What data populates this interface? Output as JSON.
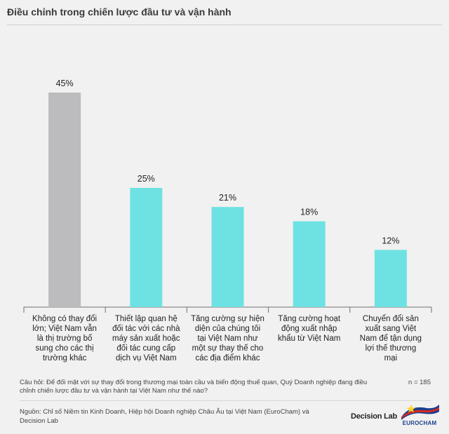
{
  "title": "Điều chỉnh trong chiến lược đầu tư và vận hành",
  "chart_data": {
    "type": "bar",
    "categories": [
      "Không có thay đổi lớn; Việt Nam vẫn là thị trường bổ sung cho các thị trường khác",
      "Thiết lập quan hệ đối tác với các nhà máy sản xuất hoặc đối tác cung cấp dịch vụ Việt Nam",
      "Tăng cường sự hiện diện của chúng tôi tại Việt Nam như một sự thay thế cho các địa điểm khác",
      "Tăng cường hoạt động xuất nhập khẩu từ Việt Nam",
      "Chuyển đổi sản xuất sang Việt Nam để tận dụng lợi thế thương mại"
    ],
    "category_lines": [
      [
        "Không có thay đổi",
        "lớn; Việt Nam vẫn",
        "là thị trường bổ",
        "sung cho các thị",
        "trường khác"
      ],
      [
        "Thiết lập quan hệ",
        "đối tác với các nhà",
        "máy sản xuất hoặc",
        "đối tác cung cấp",
        "dịch vụ Việt Nam"
      ],
      [
        "Tăng cường sự hiện",
        "diện của chúng tôi",
        "tại Việt Nam như",
        "một sự thay thế cho",
        "các địa điểm khác"
      ],
      [
        "Tăng cường hoạt",
        "động xuất nhập",
        "khẩu từ Việt Nam"
      ],
      [
        "Chuyển đổi sản",
        "xuất sang Việt",
        "Nam để tận dụng",
        "lợi thế thương",
        "mại"
      ]
    ],
    "values": [
      45,
      25,
      21,
      18,
      12
    ],
    "value_labels": [
      "45%",
      "25%",
      "21%",
      "18%",
      "12%"
    ],
    "colors": [
      "#bcbcbe",
      "#6ee2e2",
      "#6ee2e2",
      "#6ee2e2",
      "#6ee2e2"
    ],
    "ylim": [
      0,
      45
    ],
    "grid": false,
    "legend": "none"
  },
  "footer": {
    "question": "Câu hỏi: Để đối mặt với sự thay đổi trong thương mại toàn cầu và biến động thuế quan, Quý Doanh nghiệp đang điều chỉnh chiến lược đầu tư và vận hành tại Việt Nam như thế nào?",
    "n": "n = 185",
    "source": "Nguồn: Chỉ số Niềm tin Kinh Doanh, Hiệp hội Doanh nghiệp Châu Âu tại Việt Nam (EuroCham) và Decision Lab",
    "brand_decision_lab": "Decision Lab",
    "brand_eurocham": "EUROCHAM"
  },
  "colors": {
    "highlight": "#6ee2e2",
    "neutral": "#bcbcbe",
    "background": "#f1f1f1"
  }
}
